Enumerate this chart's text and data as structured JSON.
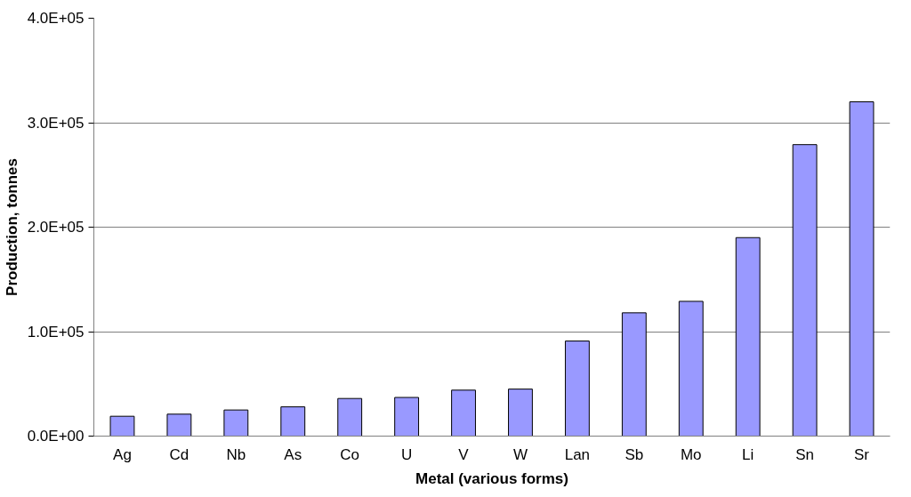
{
  "chart_data": {
    "type": "bar",
    "xlabel": "Metal (various forms)",
    "ylabel": "Production, tonnes",
    "categories": [
      "Ag",
      "Cd",
      "Nb",
      "As",
      "Co",
      "U",
      "V",
      "W",
      "Lan",
      "Sb",
      "Mo",
      "Li",
      "Sn",
      "Sr"
    ],
    "values": [
      19000,
      21000,
      25000,
      28000,
      36000,
      37000,
      44000,
      45000,
      91000,
      118000,
      129000,
      190000,
      279000,
      320000
    ],
    "color": "#9999ff",
    "ylim": [
      0,
      400000
    ],
    "yticks": [
      {
        "value": 0,
        "label": "0.0E+00"
      },
      {
        "value": 100000,
        "label": "1.0E+05"
      },
      {
        "value": 200000,
        "label": "2.0E+05"
      },
      {
        "value": 300000,
        "label": "3.0E+05"
      },
      {
        "value": 400000,
        "label": "4.0E+05"
      }
    ],
    "grid": "y"
  }
}
